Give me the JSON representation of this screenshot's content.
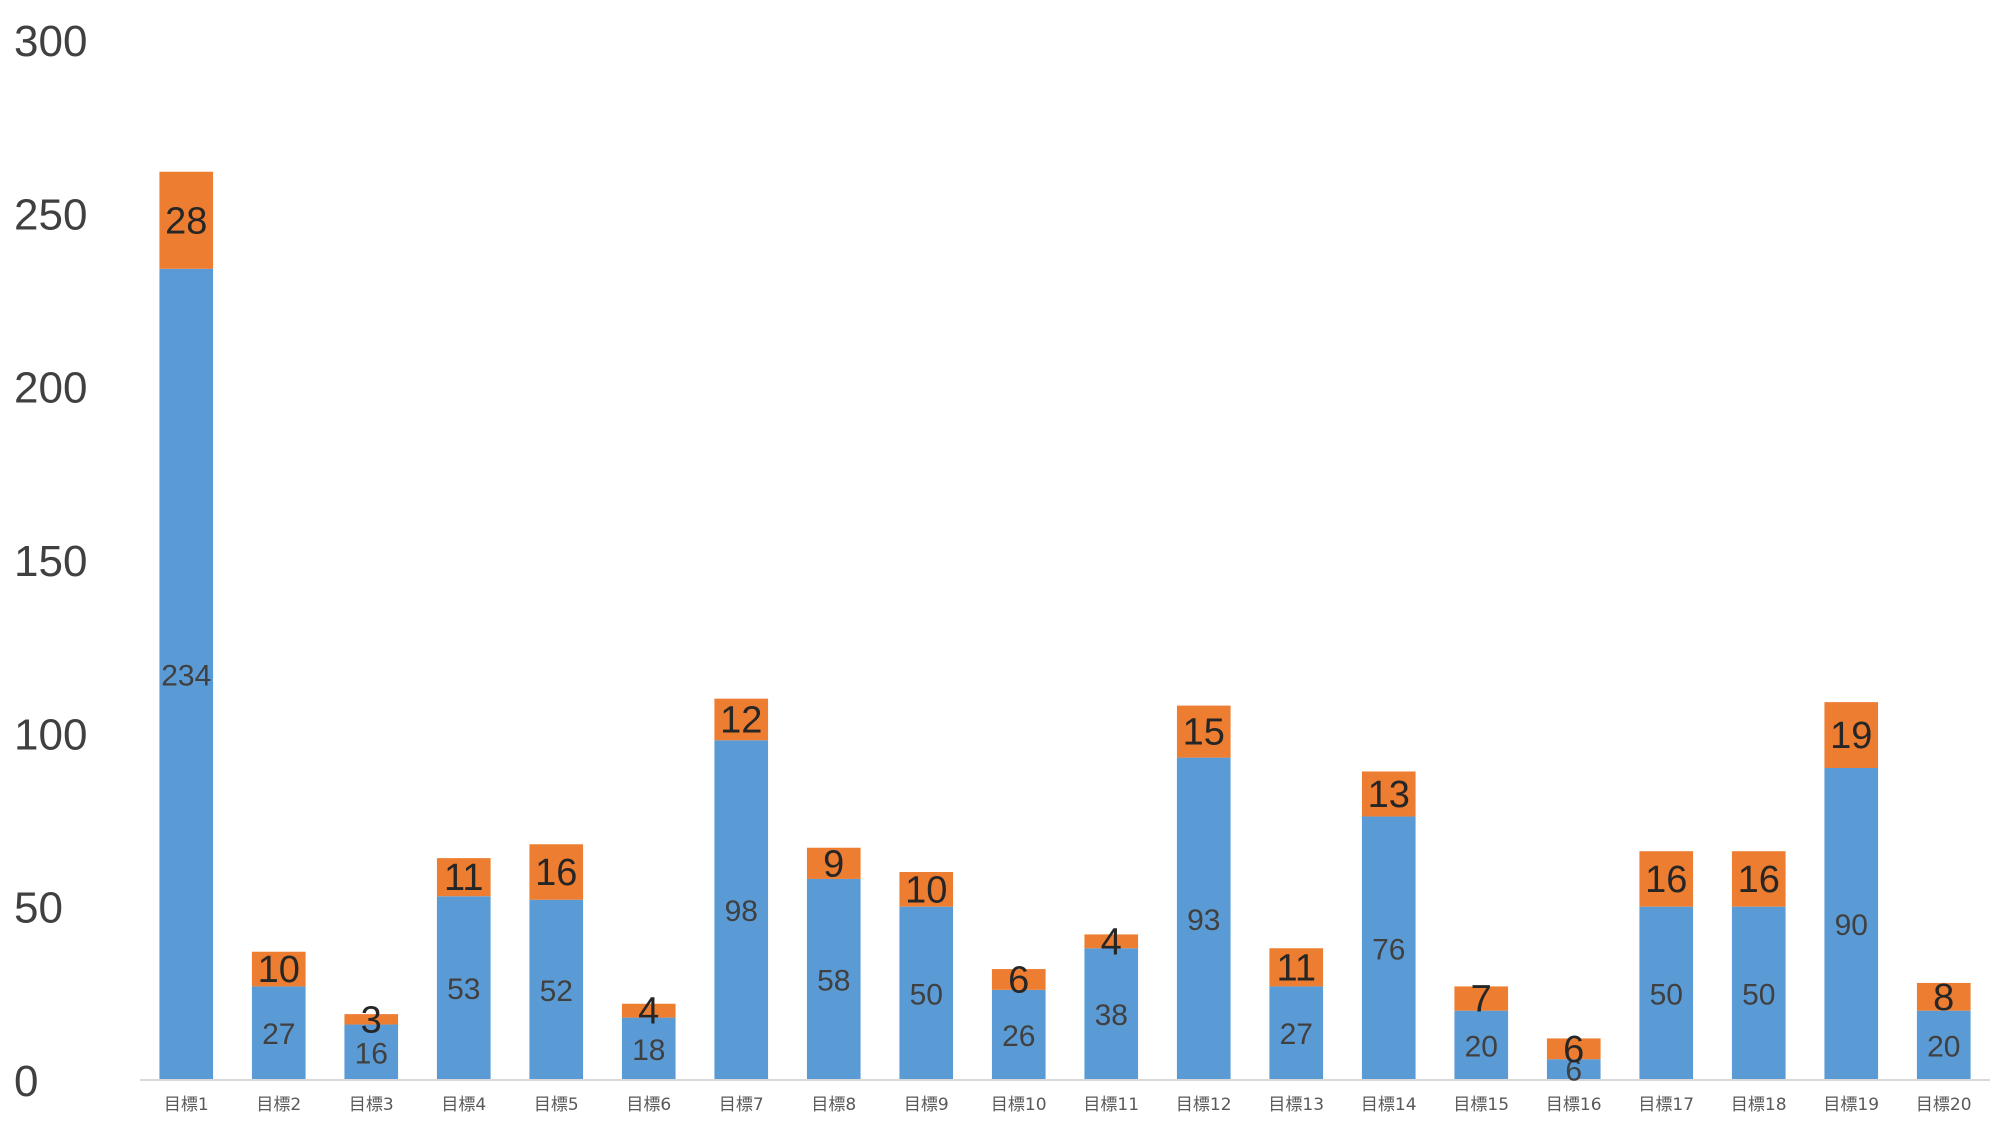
{
  "chart_data": {
    "type": "bar",
    "stacked": true,
    "categories": [
      "目標1",
      "目標2",
      "目標3",
      "目標4",
      "目標5",
      "目標6",
      "目標7",
      "目標8",
      "目標9",
      "目標10",
      "目標11",
      "目標12",
      "目標13",
      "目標14",
      "目標15",
      "目標16",
      "目標17",
      "目標18",
      "目標19",
      "目標20"
    ],
    "series": [
      {
        "values": [
          234,
          27,
          16,
          53,
          52,
          18,
          98,
          58,
          50,
          26,
          38,
          93,
          27,
          76,
          20,
          6,
          50,
          50,
          90,
          20
        ],
        "color": "#5B9BD5"
      },
      {
        "values": [
          28,
          10,
          3,
          11,
          16,
          4,
          12,
          9,
          10,
          6,
          4,
          15,
          11,
          13,
          7,
          6,
          16,
          16,
          19,
          8
        ],
        "color": "#ED7D31"
      }
    ],
    "ylim": [
      0,
      300
    ],
    "yticks": [
      "0",
      "50",
      "100",
      "150",
      "200",
      "250",
      "300"
    ],
    "grid": false,
    "legend": "none"
  }
}
